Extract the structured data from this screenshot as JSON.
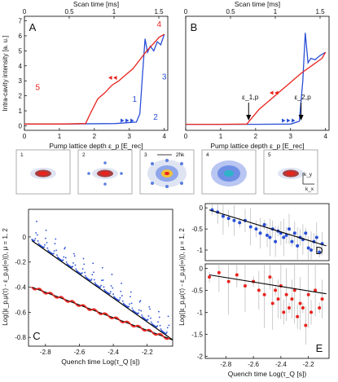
{
  "chart_data": [
    {
      "panel": "A",
      "type": "line",
      "top_axis": {
        "label": "Scan time [ms]",
        "ticks": [
          "0",
          "0.5",
          "1",
          "1.5"
        ]
      },
      "xlabel": "Pump lattice depth ε_p [E_rec]",
      "ylabel": "Intra-cavity intensity [a. u.]",
      "xlim": [
        0,
        4.1
      ],
      "ylim": [
        -0.3,
        7.3
      ],
      "xticks": [
        "0",
        "1",
        "2",
        "3",
        "4"
      ],
      "yticks": [
        "0",
        "1",
        "2",
        "3",
        "4",
        "5",
        "6",
        "7"
      ],
      "series": [
        {
          "color": "#2a4fd6",
          "x": [
            0,
            1,
            2.6,
            3.2,
            3.3,
            3.38,
            3.45,
            3.52,
            3.6,
            3.7,
            3.8,
            3.9,
            4.0
          ],
          "y": [
            0.12,
            0.12,
            0.15,
            0.25,
            0.8,
            3.5,
            5.8,
            4.9,
            5.3,
            5.0,
            5.6,
            5.4,
            6.1
          ]
        },
        {
          "color": "#e8231d",
          "x": [
            0,
            1,
            1.75,
            1.9,
            2.1,
            2.3,
            2.5,
            2.7,
            2.9,
            3.1,
            3.3,
            3.5,
            3.7,
            3.85,
            4.0
          ],
          "y": [
            0.12,
            0.12,
            0.15,
            0.9,
            1.8,
            2.2,
            2.7,
            3.0,
            3.4,
            3.8,
            4.4,
            5.0,
            5.5,
            5.9,
            6.1
          ]
        }
      ],
      "markers": [
        {
          "label": "1",
          "color": "#2a4fd6",
          "x": 3.15,
          "y": 1.6
        },
        {
          "label": "2",
          "color": "#2a4fd6",
          "x": 3.75,
          "y": 0.4
        },
        {
          "label": "3",
          "color": "#2a4fd6",
          "x": 4.0,
          "y": 3.1
        },
        {
          "label": "4",
          "color": "#e8231d",
          "x": 3.85,
          "y": 6.6
        },
        {
          "label": "5",
          "color": "#e8231d",
          "x": 0.38,
          "y": 2.4
        }
      ]
    },
    {
      "panel": "B",
      "type": "line",
      "top_axis": {
        "label": "Scan time [ms]",
        "ticks": [
          "0",
          "0.5",
          "1",
          "1.5"
        ]
      },
      "xlabel": "Pump lattice depth ε_p [E_rec]",
      "xlim": [
        0,
        4.1
      ],
      "ylim": [
        -0.3,
        7.3
      ],
      "xticks": [
        "0",
        "1",
        "2",
        "3",
        "4"
      ],
      "series": [
        {
          "color": "#2a4fd6",
          "x": [
            0,
            1,
            2,
            3.0,
            3.25,
            3.35,
            3.42,
            3.5,
            3.58,
            3.7,
            3.85,
            4.0
          ],
          "y": [
            0.1,
            0.1,
            0.1,
            0.12,
            0.3,
            3.0,
            6.2,
            4.2,
            4.5,
            4.4,
            4.7,
            4.9
          ]
        },
        {
          "color": "#e8231d",
          "x": [
            0,
            1,
            1.75,
            1.85,
            2.1,
            2.4,
            2.7,
            3.0,
            3.3,
            3.6,
            3.9,
            4.0
          ],
          "y": [
            0.1,
            0.1,
            0.12,
            0.4,
            1.1,
            1.7,
            2.3,
            2.9,
            3.5,
            4.0,
            4.5,
            4.9
          ]
        }
      ],
      "annotations": [
        {
          "label": "ε_1,p",
          "x": 1.8
        },
        {
          "label": "ε_2,p",
          "x": 3.3
        }
      ]
    },
    {
      "panel": "C",
      "type": "scatter",
      "xlabel": "Quench time Log(τ_Q [s])",
      "ylabel": "Log(|ε_p,μ(τ) - ε_p,μ(∞)|),  μ = 1, 2",
      "xlim": [
        -2.9,
        -2.05
      ],
      "ylim": [
        -0.87,
        0.22
      ],
      "xticks": [
        "-2.8",
        "-2.6",
        "-2.4",
        "-2.2"
      ],
      "yticks": [
        "0",
        "-0.2",
        "-0.4",
        "-0.6",
        "-0.8"
      ],
      "series": [
        {
          "color": "#2a4fd6",
          "fit": [
            [
              -2.88,
              -0.03
            ],
            [
              -2.05,
              -0.82
            ]
          ]
        },
        {
          "color": "#e8231d",
          "fit": [
            [
              -2.88,
              -0.4
            ],
            [
              -2.05,
              -0.82
            ]
          ]
        }
      ]
    },
    {
      "panel": "D",
      "type": "scatter",
      "ylabel": "Log(|ε_p,μ(τ) - ε_p,μ(∞)|),  μ = 1, 2",
      "xlim": [
        -2.95,
        -2.05
      ],
      "ylim": [
        -1.25,
        0.1
      ],
      "yticks": [
        "0",
        "-0.5",
        "-1"
      ],
      "series": [
        {
          "color": "#2a4fd6",
          "x": [
            -2.9,
            -2.86,
            -2.82,
            -2.78,
            -2.74,
            -2.7,
            -2.66,
            -2.62,
            -2.58,
            -2.55,
            -2.52,
            -2.5,
            -2.48,
            -2.46,
            -2.44,
            -2.42,
            -2.4,
            -2.38,
            -2.36,
            -2.34,
            -2.32,
            -2.3,
            -2.28,
            -2.26,
            -2.24,
            -2.22,
            -2.2,
            -2.18,
            -2.16,
            -2.14,
            -2.12,
            -2.1
          ],
          "y": [
            -0.05,
            -0.1,
            -0.2,
            -0.25,
            -0.3,
            -0.35,
            -0.3,
            -0.45,
            -0.5,
            -0.6,
            -0.4,
            -0.65,
            -0.7,
            -0.5,
            -0.8,
            -0.55,
            -0.6,
            -0.7,
            -0.65,
            -0.5,
            -0.8,
            -0.6,
            -0.9,
            -0.7,
            -0.75,
            -0.6,
            -0.95,
            -1.0,
            -0.8,
            -0.7,
            -1.05,
            -0.85
          ]
        }
      ],
      "fit": [
        [
          -2.92,
          -0.05
        ],
        [
          -2.07,
          -0.9
        ]
      ]
    },
    {
      "panel": "E",
      "type": "scatter",
      "xlabel": "Quench time Log(τ_Q [s])",
      "xlim": [
        -2.95,
        -2.05
      ],
      "ylim": [
        -2.05,
        0.1
      ],
      "xticks": [
        "-2.8",
        "-2.6",
        "-2.4",
        "-2.2"
      ],
      "yticks": [
        "0",
        "-0.5",
        "-1",
        "-1.5",
        "-2"
      ],
      "series": [
        {
          "color": "#e8231d",
          "x": [
            -2.92,
            -2.85,
            -2.78,
            -2.72,
            -2.66,
            -2.6,
            -2.56,
            -2.52,
            -2.48,
            -2.46,
            -2.44,
            -2.42,
            -2.4,
            -2.38,
            -2.36,
            -2.34,
            -2.32,
            -2.3,
            -2.28,
            -2.26,
            -2.24,
            -2.22,
            -2.2,
            -2.18,
            -2.15,
            -2.12,
            -2.1
          ],
          "y": [
            -0.2,
            -0.1,
            -0.3,
            -0.15,
            -0.4,
            -0.3,
            -0.5,
            -0.6,
            -0.2,
            -0.8,
            -0.5,
            -0.7,
            -0.4,
            -1.0,
            -0.6,
            -0.9,
            -0.7,
            -0.5,
            -1.1,
            -0.8,
            -0.9,
            -1.3,
            -0.6,
            -1.0,
            -0.5,
            -0.9,
            -0.7
          ]
        }
      ],
      "fit": [
        [
          -2.92,
          -0.15
        ],
        [
          -2.07,
          -0.58
        ]
      ]
    }
  ],
  "snapshots": [
    {
      "label": "1"
    },
    {
      "label": "2"
    },
    {
      "label": "3",
      "scale_label": "2ħk"
    },
    {
      "label": "4"
    },
    {
      "label": "5",
      "axis_y": "k_y",
      "axis_x": "k_x"
    }
  ]
}
